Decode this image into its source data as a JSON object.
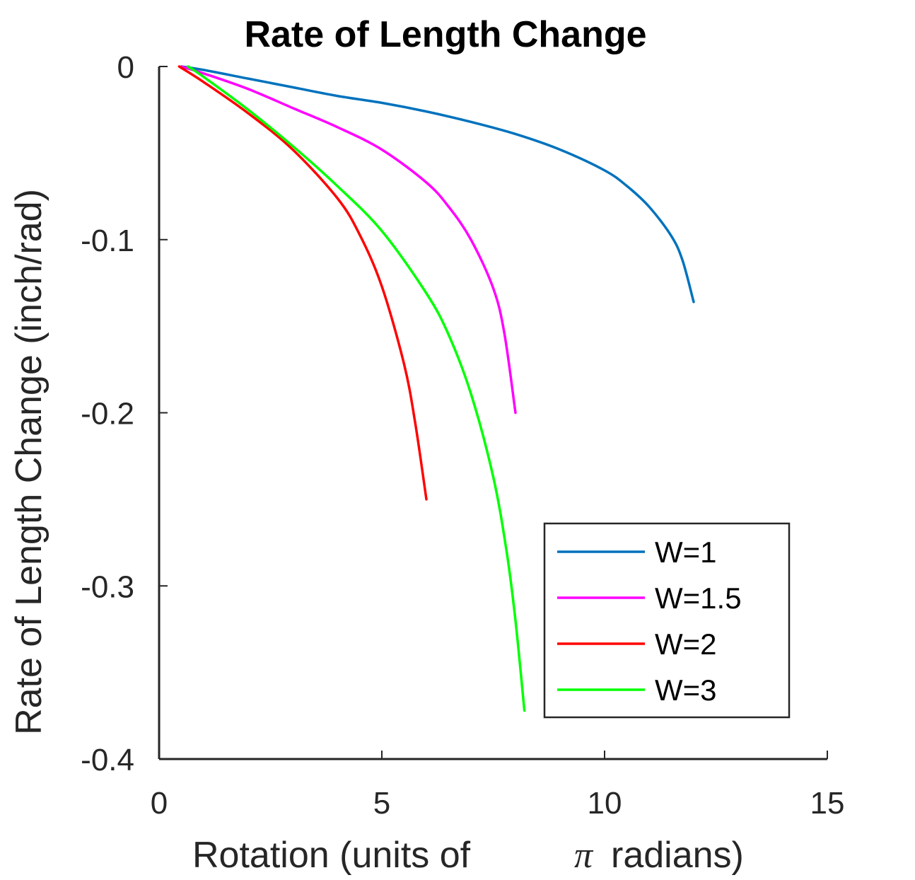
{
  "chart_data": {
    "type": "line",
    "title": "Rate of Length Change",
    "xlabel": "Rotation (units of",
    "xlabel_symbol": "π",
    "xlabel_suffix": "radians)",
    "ylabel": "Rate of Length Change (inch/rad)",
    "xlim": [
      0,
      15
    ],
    "ylim": [
      -0.4,
      0
    ],
    "xticks": [
      0,
      5,
      10,
      15
    ],
    "xtick_labels": [
      "0",
      "5",
      "10",
      "15"
    ],
    "yticks": [
      0,
      -0.1,
      -0.2,
      -0.3,
      -0.4
    ],
    "ytick_labels": [
      "0",
      "-0.1",
      "-0.2",
      "-0.3",
      "-0.4"
    ],
    "grid": false,
    "legend_position": "bottom-right",
    "series": [
      {
        "name": "W=1",
        "color": "#0072BD",
        "x": [
          0.5,
          1,
          2,
          3,
          4,
          5,
          6,
          7,
          8,
          9,
          10,
          10.5,
          11,
          11.5,
          11.75,
          12
        ],
        "y": [
          0,
          -0.002,
          -0.007,
          -0.012,
          -0.017,
          -0.021,
          -0.026,
          -0.032,
          -0.039,
          -0.048,
          -0.06,
          -0.069,
          -0.081,
          -0.098,
          -0.112,
          -0.136
        ]
      },
      {
        "name": "W=1.5",
        "color": "#FF00FF",
        "x": [
          0.5,
          1,
          2,
          3,
          4,
          5,
          6,
          6.5,
          7,
          7.5,
          7.75,
          8
        ],
        "y": [
          0,
          -0.004,
          -0.013,
          -0.024,
          -0.035,
          -0.048,
          -0.067,
          -0.081,
          -0.1,
          -0.128,
          -0.154,
          -0.2
        ]
      },
      {
        "name": "W=2",
        "color": "#FF0000",
        "x": [
          0.45,
          1,
          2,
          3,
          4,
          4.5,
          5,
          5.5,
          5.75,
          6
        ],
        "y": [
          0,
          -0.009,
          -0.027,
          -0.048,
          -0.076,
          -0.097,
          -0.127,
          -0.172,
          -0.206,
          -0.25
        ]
      },
      {
        "name": "W=3",
        "color": "#00FF00",
        "x": [
          0.65,
          1,
          2,
          3,
          4,
          5,
          6,
          6.5,
          7,
          7.5,
          7.8,
          8,
          8.2
        ],
        "y": [
          0,
          -0.006,
          -0.025,
          -0.046,
          -0.069,
          -0.095,
          -0.131,
          -0.155,
          -0.189,
          -0.237,
          -0.28,
          -0.32,
          -0.372
        ]
      }
    ]
  }
}
